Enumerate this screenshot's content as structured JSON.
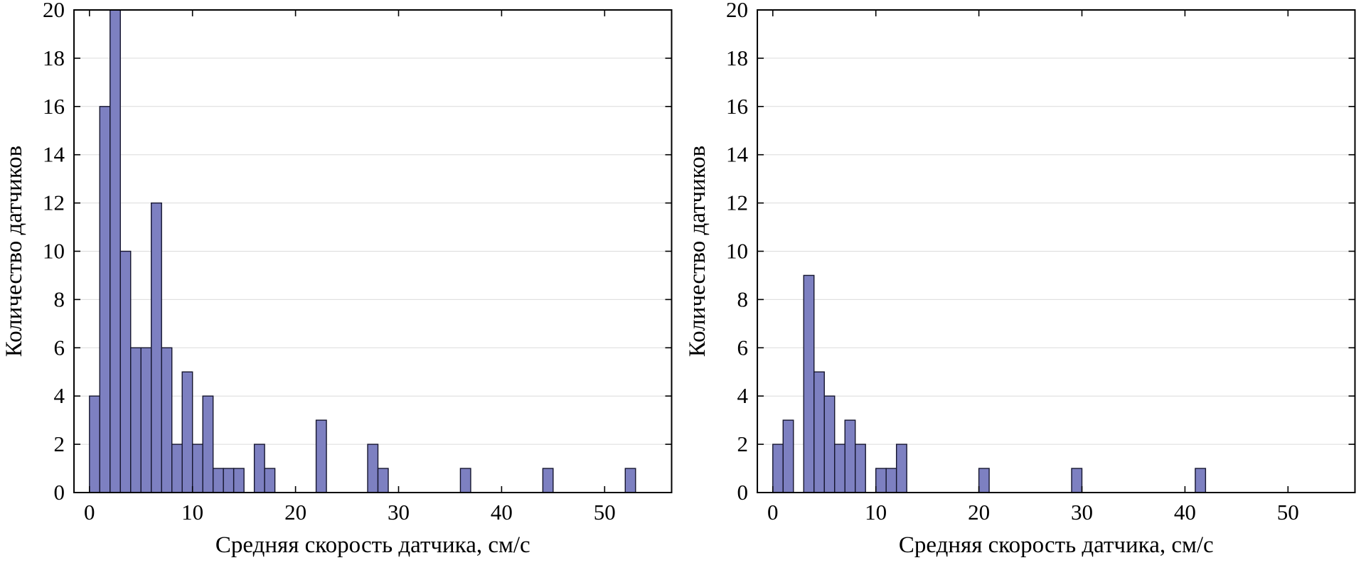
{
  "figure": {
    "background_color": "#ffffff"
  },
  "chart_data": [
    {
      "type": "bar",
      "chart_kind": "histogram",
      "panel": "left",
      "title": "",
      "xlabel": "Средняя скорость датчика, см/с",
      "ylabel": "Количество датчиков",
      "xlim": [
        -1.5,
        56.5
      ],
      "ylim": [
        0,
        20
      ],
      "xticks": [
        0,
        10,
        20,
        30,
        40,
        50
      ],
      "yticks": [
        0,
        2,
        4,
        6,
        8,
        10,
        12,
        14,
        16,
        18,
        20
      ],
      "grid": "horizontal",
      "bin_width": 1,
      "bins": [
        {
          "start": 0,
          "count": 4
        },
        {
          "start": 1,
          "count": 16
        },
        {
          "start": 2,
          "count": 20
        },
        {
          "start": 3,
          "count": 10
        },
        {
          "start": 4,
          "count": 6
        },
        {
          "start": 5,
          "count": 6
        },
        {
          "start": 6,
          "count": 12
        },
        {
          "start": 7,
          "count": 6
        },
        {
          "start": 8,
          "count": 2
        },
        {
          "start": 9,
          "count": 5
        },
        {
          "start": 10,
          "count": 2
        },
        {
          "start": 11,
          "count": 4
        },
        {
          "start": 12,
          "count": 1
        },
        {
          "start": 13,
          "count": 1
        },
        {
          "start": 14,
          "count": 1
        },
        {
          "start": 16,
          "count": 2
        },
        {
          "start": 17,
          "count": 1
        },
        {
          "start": 22,
          "count": 3
        },
        {
          "start": 27,
          "count": 2
        },
        {
          "start": 28,
          "count": 1
        },
        {
          "start": 36,
          "count": 1
        },
        {
          "start": 44,
          "count": 1
        },
        {
          "start": 52,
          "count": 1
        }
      ],
      "bar_color": "#7d80c1",
      "bar_edge_color": "#15152e",
      "grid_color": "#dcdcdc",
      "axis_color": "#000000"
    },
    {
      "type": "bar",
      "chart_kind": "histogram",
      "panel": "right",
      "title": "",
      "xlabel": "Средняя скорость датчика, см/с",
      "ylabel": "Количество датчиков",
      "xlim": [
        -1.5,
        56.5
      ],
      "ylim": [
        0,
        20
      ],
      "xticks": [
        0,
        10,
        20,
        30,
        40,
        50
      ],
      "yticks": [
        0,
        2,
        4,
        6,
        8,
        10,
        12,
        14,
        16,
        18,
        20
      ],
      "grid": "horizontal",
      "bin_width": 1,
      "bins": [
        {
          "start": 0,
          "count": 2
        },
        {
          "start": 1,
          "count": 3
        },
        {
          "start": 3,
          "count": 9
        },
        {
          "start": 4,
          "count": 5
        },
        {
          "start": 5,
          "count": 4
        },
        {
          "start": 6,
          "count": 2
        },
        {
          "start": 7,
          "count": 3
        },
        {
          "start": 8,
          "count": 2
        },
        {
          "start": 10,
          "count": 1
        },
        {
          "start": 11,
          "count": 1
        },
        {
          "start": 12,
          "count": 2
        },
        {
          "start": 20,
          "count": 1
        },
        {
          "start": 29,
          "count": 1
        },
        {
          "start": 41,
          "count": 1
        }
      ],
      "bar_color": "#7d80c1",
      "bar_edge_color": "#15152e",
      "grid_color": "#dcdcdc",
      "axis_color": "#000000"
    }
  ]
}
